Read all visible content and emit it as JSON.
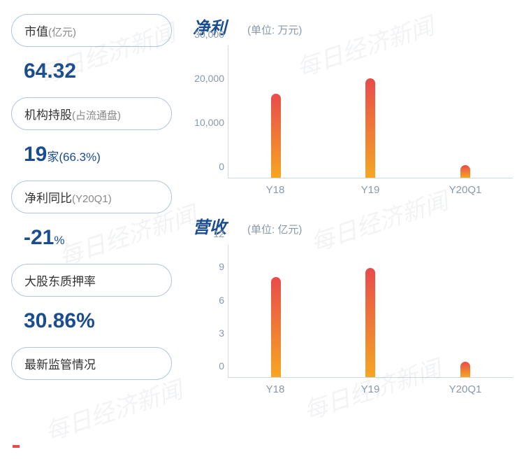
{
  "left": {
    "items": [
      {
        "label": "市值",
        "sub": "(亿元)",
        "value": "64.32",
        "value_suffix": ""
      },
      {
        "label": "机构持股",
        "sub": "(占流通盘)",
        "value": "19",
        "value_suffix": "家(66.3%)"
      },
      {
        "label": "净利同比",
        "sub": "(Y20Q1)",
        "value": "-21",
        "value_suffix": "%"
      },
      {
        "label": "大股东质押率",
        "sub": "",
        "value": "30.86%",
        "value_suffix": ""
      },
      {
        "label": "最新监管情况",
        "sub": "",
        "value": "",
        "value_suffix": ""
      }
    ]
  },
  "charts": [
    {
      "title": "净利",
      "unit": "(单位: 万元)",
      "type": "bar",
      "categories": [
        "Y18",
        "Y19",
        "Y20Q1"
      ],
      "values": [
        19000,
        22500,
        2800
      ],
      "ymax": 30000,
      "ytick_step": 10000,
      "ytick_labels": [
        "0",
        "10,000",
        "20,000",
        "30,000"
      ],
      "bar_gradient_top": "#e94b4b",
      "bar_gradient_bottom": "#f5a623",
      "axis_color": "#d0d8e0",
      "label_color": "#8899aa",
      "title_color": "#1a4d8f"
    },
    {
      "title": "营收",
      "unit": "(单位: 亿元)",
      "type": "bar",
      "categories": [
        "Y18",
        "Y19",
        "Y20Q1"
      ],
      "values": [
        9.1,
        9.9,
        1.4
      ],
      "ymax": 12,
      "ytick_step": 3,
      "ytick_labels": [
        "0",
        "3",
        "6",
        "9",
        "12"
      ],
      "bar_gradient_top": "#e94b4b",
      "bar_gradient_bottom": "#f5a623",
      "axis_color": "#d0d8e0",
      "label_color": "#8899aa",
      "title_color": "#1a4d8f"
    }
  ],
  "watermark_text": "每日经济新闻",
  "colors": {
    "pill_border": "#b0c4de",
    "metric_text": "#1a4d8f",
    "sub_text": "#888888",
    "background": "#ffffff"
  }
}
